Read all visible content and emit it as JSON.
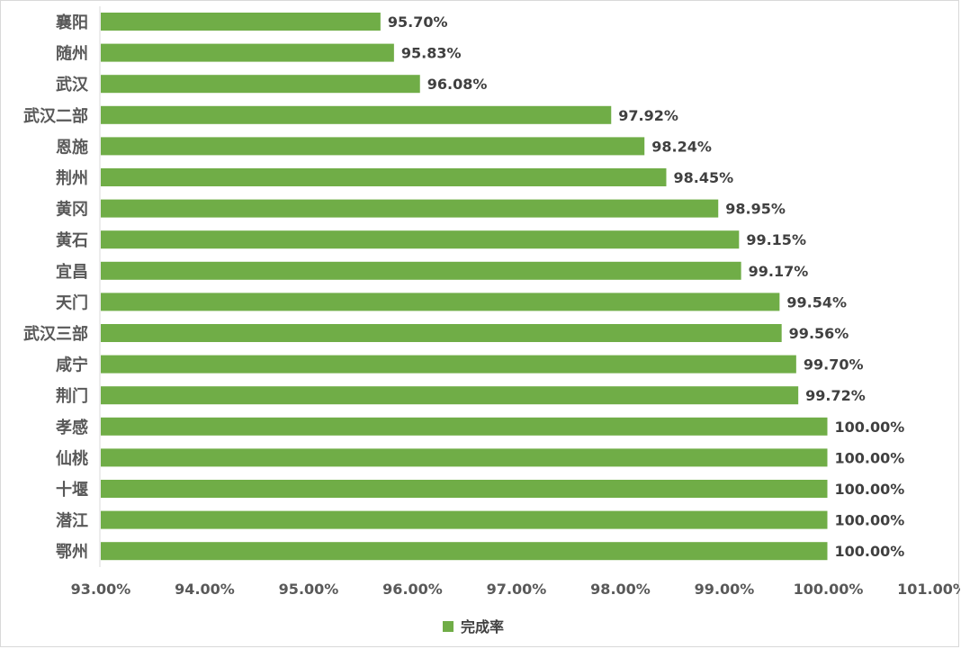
{
  "chart_data": {
    "type": "bar",
    "orientation": "horizontal",
    "categories": [
      "襄阳",
      "随州",
      "武汉",
      "武汉二部",
      "恩施",
      "荆州",
      "黄冈",
      "黄石",
      "宜昌",
      "天门",
      "武汉三部",
      "咸宁",
      "荆门",
      "孝感",
      "仙桃",
      "十堰",
      "潜江",
      "鄂州"
    ],
    "series": [
      {
        "name": "完成率",
        "color": "#70ad47",
        "values": [
          95.7,
          95.83,
          96.08,
          97.92,
          98.24,
          98.45,
          98.95,
          99.15,
          99.17,
          99.54,
          99.56,
          99.7,
          99.72,
          100.0,
          100.0,
          100.0,
          100.0,
          100.0
        ],
        "labels": [
          "95.70%",
          "95.83%",
          "96.08%",
          "97.92%",
          "98.24%",
          "98.45%",
          "98.95%",
          "99.15%",
          "99.17%",
          "99.54%",
          "99.56%",
          "99.70%",
          "99.72%",
          "100.00%",
          "100.00%",
          "100.00%",
          "100.00%",
          "100.00%"
        ]
      }
    ],
    "xlim": [
      93,
      101
    ],
    "xticks": [
      93,
      94,
      95,
      96,
      97,
      98,
      99,
      100,
      101
    ],
    "xtick_labels": [
      "93.00%",
      "94.00%",
      "95.00%",
      "96.00%",
      "97.00%",
      "98.00%",
      "99.00%",
      "100.00%",
      "101.00%"
    ],
    "title": "",
    "xlabel": "",
    "ylabel": "",
    "grid": false,
    "legend": {
      "position": "bottom-center",
      "entries": [
        "完成率"
      ]
    }
  }
}
